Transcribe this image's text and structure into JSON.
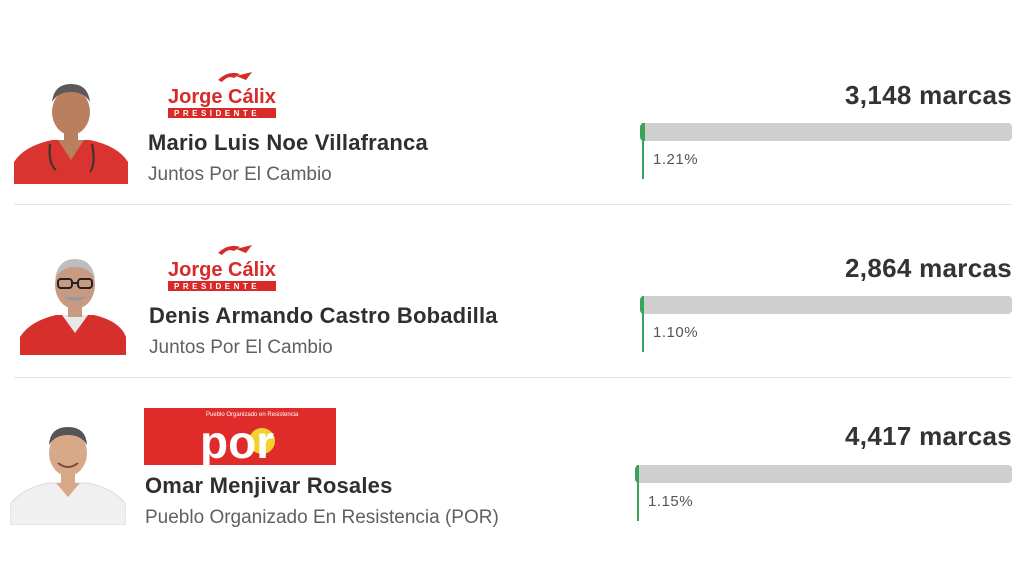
{
  "candidates": [
    {
      "name": "Mario Luis Noe Villafranca",
      "party": "Juntos Por El Cambio",
      "votes": "3,148 marcas",
      "percent_label": "1.21%",
      "percent": 1.21,
      "logo_text": "Jorge Cálix",
      "logo_subtext": "PRESIDENTE"
    },
    {
      "name": "Denis Armando Castro Bobadilla",
      "party": "Juntos Por El Cambio",
      "votes": "2,864 marcas",
      "percent_label": "1.10%",
      "percent": 1.1,
      "logo_text": "Jorge Cálix",
      "logo_subtext": "PRESIDENTE"
    },
    {
      "name": "Omar Menjivar Rosales",
      "party": "Pueblo Organizado En Resistencia (POR)",
      "votes": "4,417 marcas",
      "percent_label": "1.15%",
      "percent": 1.15,
      "logo_text": "por",
      "logo_subtext": "Pueblo Organizado en Resistencia"
    }
  ],
  "colors": {
    "bar_fill": "#3aa35a",
    "bar_track": "#cfcfcf",
    "logo_red": "#d92a2a",
    "text_dark": "#2f2f2f",
    "text_muted": "#606060"
  }
}
